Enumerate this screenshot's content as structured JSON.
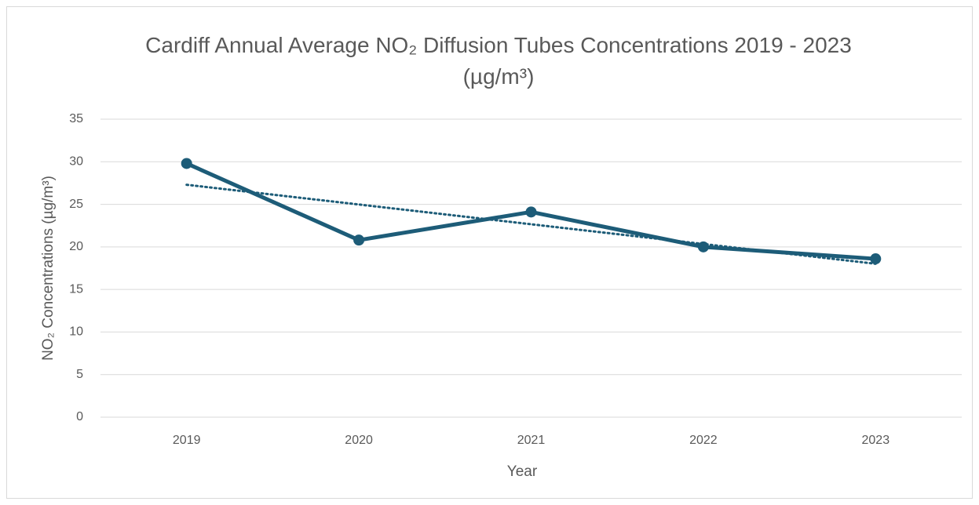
{
  "chart_data": {
    "type": "line",
    "title": "Cardiff Annual Average NO₂ Diffusion Tubes Concentrations 2019 - 2023 (µg/m³)",
    "x_label": "Year",
    "y_label": "NO₂ Concentrations (µg/m³)",
    "categories": [
      "2019",
      "2020",
      "2021",
      "2022",
      "2023"
    ],
    "values": [
      29.8,
      20.8,
      24.1,
      20.0,
      18.6
    ],
    "color": "#1d5c78",
    "trendline": "linear",
    "ylim": [
      0,
      35
    ],
    "yticks": [
      0,
      5,
      10,
      15,
      20,
      25,
      30,
      35
    ],
    "grid": true
  }
}
